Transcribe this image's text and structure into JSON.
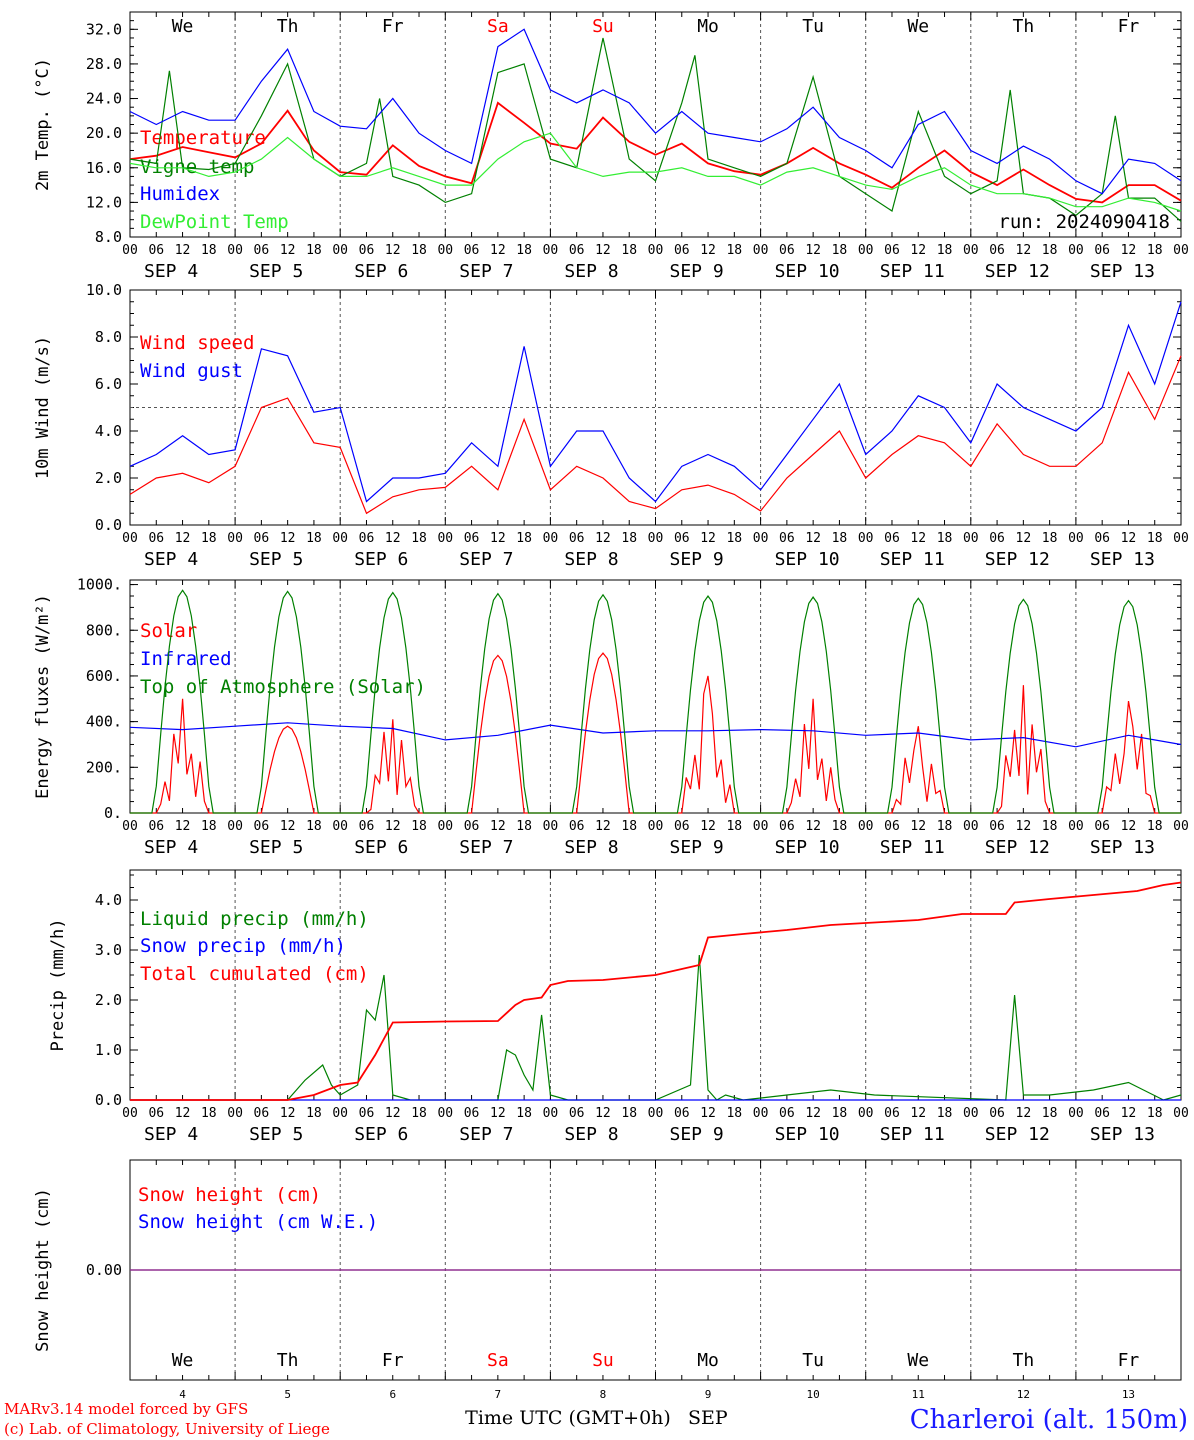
{
  "station": "Charleroi (alt. 150m)",
  "run_label": "run: 2024090418",
  "credits": [
    "MARv3.14 model forced by GFS",
    "(c) Lab. of Climatology, University of Liege"
  ],
  "time_axis_label": "Time UTC (GMT+0h)",
  "month_label": "SEP",
  "hour_ticks": [
    "00",
    "06",
    "12",
    "18"
  ],
  "final_tick": "00",
  "days": [
    {
      "weekday": "We",
      "date": "SEP   4",
      "num": "4",
      "weekend": false
    },
    {
      "weekday": "Th",
      "date": "SEP   5",
      "num": "5",
      "weekend": false
    },
    {
      "weekday": "Fr",
      "date": "SEP   6",
      "num": "6",
      "weekend": false
    },
    {
      "weekday": "Sa",
      "date": "SEP   7",
      "num": "7",
      "weekend": true
    },
    {
      "weekday": "Su",
      "date": "SEP   8",
      "num": "8",
      "weekend": true
    },
    {
      "weekday": "Mo",
      "date": "SEP   9",
      "num": "9",
      "weekend": false
    },
    {
      "weekday": "Tu",
      "date": "SEP  10",
      "num": "10",
      "weekend": false
    },
    {
      "weekday": "We",
      "date": "SEP  11",
      "num": "11",
      "weekend": false
    },
    {
      "weekday": "Th",
      "date": "SEP  12",
      "num": "12",
      "weekend": false
    },
    {
      "weekday": "Fr",
      "date": "SEP  13",
      "num": "13",
      "weekend": false
    }
  ],
  "colors": {
    "red": "#ff0000",
    "blue": "#0000ff",
    "green": "#008000",
    "lightgreen": "#33ee33",
    "purple": "#7a2fa0",
    "weekend": "#ff0000"
  },
  "chart_data": [
    {
      "type": "line",
      "ylabel": "2m Temp. (°C)",
      "ylim": [
        8,
        34
      ],
      "yticks": [
        "32.0",
        "28.0",
        "24.0",
        "20.0",
        "16.0",
        "12.0",
        "8.0"
      ],
      "ytick_values": [
        32,
        28,
        24,
        20,
        16,
        12,
        8
      ],
      "x_unit": "hours since SEP 4 00 UTC",
      "series": [
        {
          "name": "Temperature",
          "color": "#ff0000",
          "x": [
            0,
            6,
            12,
            18,
            24,
            30,
            36,
            42,
            48,
            54,
            60,
            66,
            72,
            78,
            84,
            90,
            96,
            102,
            108,
            114,
            120,
            126,
            132,
            138,
            144,
            150,
            156,
            162,
            168,
            174,
            180,
            186,
            192,
            198,
            204,
            210,
            216,
            222,
            228,
            234,
            240
          ],
          "y": [
            17.0,
            17.4,
            18.4,
            17.8,
            17.2,
            18.8,
            22.6,
            18.0,
            15.5,
            15.2,
            18.6,
            16.2,
            15.0,
            14.2,
            23.5,
            21.2,
            18.8,
            18.2,
            21.8,
            19.0,
            17.5,
            18.8,
            16.5,
            15.6,
            15.2,
            16.5,
            18.3,
            16.5,
            15.2,
            13.7,
            16.0,
            18.0,
            15.5,
            14.0,
            15.8,
            14.0,
            12.4,
            12.0,
            14.0,
            14.0,
            12.2
          ]
        },
        {
          "name": "Vigne temp",
          "color": "#008000",
          "x": [
            0,
            6,
            9,
            12,
            18,
            24,
            30,
            36,
            42,
            48,
            54,
            57,
            60,
            66,
            72,
            78,
            84,
            90,
            96,
            102,
            108,
            114,
            120,
            126,
            129,
            132,
            138,
            144,
            150,
            156,
            162,
            168,
            174,
            180,
            186,
            192,
            198,
            201,
            204,
            210,
            216,
            222,
            225,
            228,
            234,
            240
          ],
          "y": [
            17.0,
            16.5,
            27.2,
            16.0,
            15.8,
            16.5,
            22.0,
            28.0,
            17.0,
            15.0,
            16.5,
            24.0,
            15.0,
            14.0,
            12.0,
            13.0,
            27.0,
            28.0,
            17.0,
            16.0,
            31.0,
            17.0,
            14.5,
            23.5,
            29.0,
            17.0,
            16.0,
            15.0,
            16.5,
            26.5,
            15.0,
            13.0,
            11.0,
            22.5,
            15.0,
            13.0,
            14.5,
            25.0,
            13.0,
            12.5,
            10.5,
            13.0,
            22.0,
            12.5,
            12.5,
            9.8
          ]
        },
        {
          "name": "Humidex",
          "color": "#0000ff",
          "x": [
            0,
            6,
            12,
            18,
            24,
            30,
            36,
            42,
            48,
            54,
            60,
            66,
            72,
            78,
            84,
            90,
            96,
            102,
            108,
            114,
            120,
            126,
            132,
            138,
            144,
            150,
            156,
            162,
            168,
            174,
            180,
            186,
            192,
            198,
            204,
            210,
            216,
            222,
            228,
            234,
            240
          ],
          "y": [
            22.5,
            21.0,
            22.5,
            21.5,
            21.5,
            26.0,
            29.7,
            22.5,
            20.8,
            20.5,
            24.0,
            20.0,
            18.0,
            16.5,
            30.0,
            32.0,
            25.0,
            23.5,
            25.0,
            23.5,
            20.0,
            22.5,
            20.0,
            19.5,
            19.0,
            20.5,
            23.0,
            19.5,
            18.0,
            16.0,
            21.0,
            22.5,
            18.0,
            16.5,
            18.5,
            17.0,
            14.5,
            13.0,
            17.0,
            16.5,
            14.5
          ]
        },
        {
          "name": "DewPoint Temp",
          "color": "#33ee33",
          "x": [
            0,
            6,
            12,
            18,
            24,
            30,
            36,
            42,
            48,
            54,
            60,
            66,
            72,
            78,
            84,
            90,
            96,
            102,
            108,
            114,
            120,
            126,
            132,
            138,
            144,
            150,
            156,
            162,
            168,
            174,
            180,
            186,
            192,
            198,
            204,
            210,
            216,
            222,
            228,
            234,
            240
          ],
          "y": [
            16.5,
            16.0,
            16.0,
            15.0,
            15.5,
            17.0,
            19.5,
            17.0,
            15.0,
            15.0,
            16.0,
            15.0,
            14.0,
            14.0,
            17.0,
            19.0,
            20.0,
            16.0,
            15.0,
            15.5,
            15.5,
            16.0,
            15.0,
            15.0,
            14.0,
            15.5,
            16.0,
            15.0,
            14.0,
            13.5,
            15.0,
            16.0,
            14.0,
            13.0,
            13.0,
            12.5,
            11.5,
            11.5,
            12.5,
            12.0,
            11.0
          ]
        }
      ]
    },
    {
      "type": "line",
      "ylabel": "10m Wind (m/s)",
      "ylim": [
        0,
        10
      ],
      "yticks": [
        "10.0",
        "8.0",
        "6.0",
        "4.0",
        "2.0",
        "0.0"
      ],
      "ytick_values": [
        10,
        8,
        6,
        4,
        2,
        0
      ],
      "x_unit": "hours since SEP 4 00 UTC",
      "series": [
        {
          "name": "Wind speed",
          "color": "#ff0000",
          "x": [
            0,
            6,
            12,
            18,
            24,
            30,
            36,
            42,
            48,
            54,
            60,
            66,
            72,
            78,
            84,
            90,
            96,
            102,
            108,
            114,
            120,
            126,
            132,
            138,
            144,
            150,
            156,
            162,
            168,
            174,
            180,
            186,
            192,
            198,
            204,
            210,
            216,
            222,
            228,
            234,
            240
          ],
          "y": [
            1.3,
            2.0,
            2.2,
            1.8,
            2.5,
            5.0,
            5.4,
            3.5,
            3.3,
            0.5,
            1.2,
            1.5,
            1.6,
            2.5,
            1.5,
            4.5,
            1.5,
            2.5,
            2.0,
            1.0,
            0.7,
            1.5,
            1.7,
            1.3,
            0.6,
            2.0,
            3.0,
            4.0,
            2.0,
            3.0,
            3.8,
            3.5,
            2.5,
            4.3,
            3.0,
            2.5,
            2.5,
            3.5,
            6.5,
            4.5,
            7.2
          ]
        },
        {
          "name": "Wind gust",
          "color": "#0000ff",
          "x": [
            0,
            6,
            12,
            18,
            24,
            30,
            36,
            42,
            48,
            54,
            60,
            66,
            72,
            78,
            84,
            90,
            96,
            102,
            108,
            114,
            120,
            126,
            132,
            138,
            144,
            150,
            156,
            162,
            168,
            174,
            180,
            186,
            192,
            198,
            204,
            210,
            216,
            222,
            228,
            234,
            240
          ],
          "y": [
            2.5,
            3.0,
            3.8,
            3.0,
            3.2,
            7.5,
            7.2,
            4.8,
            5.0,
            1.0,
            2.0,
            2.0,
            2.2,
            3.5,
            2.5,
            7.6,
            2.5,
            4.0,
            4.0,
            2.0,
            1.0,
            2.5,
            3.0,
            2.5,
            1.5,
            3.0,
            4.5,
            6.0,
            3.0,
            4.0,
            5.5,
            5.0,
            3.5,
            6.0,
            5.0,
            4.5,
            4.0,
            5.0,
            8.5,
            6.0,
            9.5
          ]
        }
      ]
    },
    {
      "type": "line",
      "ylabel": "Energy fluxes (W/m²)",
      "ylim": [
        0,
        1000
      ],
      "yticks": [
        "1000.",
        "800.",
        "600.",
        "400.",
        "200.",
        "0."
      ],
      "ytick_values": [
        1000,
        800,
        600,
        400,
        200,
        0
      ],
      "x_unit": "hours since SEP 4 00 UTC",
      "series": [
        {
          "name": "Solar",
          "color": "#ff0000",
          "peaks": [
            500,
            380,
            410,
            690,
            700,
            600,
            500,
            380,
            560,
            490
          ]
        },
        {
          "name": "Infrared",
          "color": "#0000ff",
          "x": [
            0,
            12,
            24,
            36,
            48,
            60,
            72,
            84,
            96,
            108,
            120,
            132,
            144,
            156,
            168,
            180,
            192,
            204,
            216,
            228,
            240
          ],
          "y": [
            375,
            365,
            380,
            395,
            380,
            370,
            320,
            340,
            385,
            350,
            360,
            360,
            365,
            360,
            340,
            350,
            320,
            330,
            290,
            340,
            300
          ]
        },
        {
          "name": "Top of Atmosphere (Solar)",
          "color": "#008000",
          "peaks": [
            975,
            970,
            965,
            960,
            955,
            950,
            945,
            940,
            935,
            930
          ]
        }
      ]
    },
    {
      "type": "line",
      "ylabel": "Precip (mm/h)",
      "ylim": [
        0,
        4.5
      ],
      "yticks": [
        "4.0",
        "3.0",
        "2.0",
        "1.0",
        "0.0"
      ],
      "ytick_values": [
        4,
        3,
        2,
        1,
        0
      ],
      "x_unit": "hours since SEP 4 00 UTC",
      "series": [
        {
          "name": "Liquid precip (mm/h)",
          "color": "#008000",
          "x": [
            0,
            36,
            40,
            44,
            46,
            48,
            52,
            54,
            56,
            58,
            60,
            64,
            84,
            86,
            88,
            90,
            92,
            94,
            96,
            100,
            120,
            128,
            130,
            132,
            134,
            136,
            140,
            150,
            160,
            170,
            200,
            202,
            204,
            210,
            220,
            228,
            236,
            240
          ],
          "y": [
            0,
            0,
            0.4,
            0.7,
            0.3,
            0.1,
            0.3,
            1.8,
            1.6,
            2.5,
            0.1,
            0,
            0,
            1.0,
            0.9,
            0.5,
            0.2,
            1.7,
            0.1,
            0,
            0,
            0.3,
            2.9,
            0.2,
            0,
            0.1,
            0,
            0.1,
            0.2,
            0.1,
            0,
            2.1,
            0.1,
            0.1,
            0.2,
            0.35,
            0,
            0.1
          ]
        },
        {
          "name": "Snow precip (mm/h)",
          "color": "#0000ff",
          "x": [
            0,
            240
          ],
          "y": [
            0,
            0
          ]
        },
        {
          "name": "Total cumulated (cm)",
          "color": "#ff0000",
          "x": [
            0,
            36,
            42,
            48,
            52,
            56,
            60,
            66,
            72,
            84,
            88,
            90,
            94,
            96,
            100,
            108,
            120,
            130,
            132,
            140,
            150,
            160,
            170,
            180,
            190,
            200,
            202,
            210,
            220,
            230,
            236,
            240
          ],
          "y": [
            0,
            0,
            0.1,
            0.3,
            0.35,
            0.9,
            1.55,
            1.56,
            1.57,
            1.58,
            1.9,
            2.0,
            2.05,
            2.3,
            2.38,
            2.4,
            2.5,
            2.7,
            3.25,
            3.32,
            3.4,
            3.5,
            3.55,
            3.6,
            3.72,
            3.72,
            3.95,
            4.02,
            4.1,
            4.18,
            4.3,
            4.35
          ]
        }
      ]
    },
    {
      "type": "line",
      "ylabel": "Snow height (cm)",
      "yticks": [
        "0.00"
      ],
      "ytick_values": [
        0
      ],
      "x_unit": "hours since SEP 4 00 UTC",
      "series": [
        {
          "name": "Snow height (cm)",
          "color": "#ff0000",
          "x": [
            0,
            240
          ],
          "y": [
            0,
            0
          ]
        },
        {
          "name": "Snow height (cm W.E.)",
          "color": "#0000ff",
          "x": [
            0,
            240
          ],
          "y": [
            0,
            0
          ]
        }
      ]
    }
  ]
}
